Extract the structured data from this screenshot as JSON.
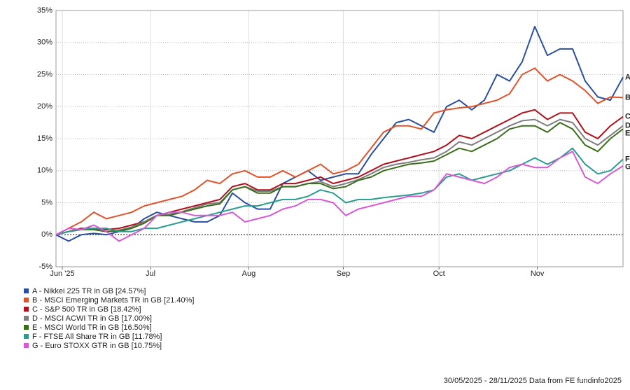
{
  "chart_data": {
    "type": "line",
    "xlim": [
      0,
      45
    ],
    "xticks": [
      {
        "value": 0.5,
        "label": "Jun '25"
      },
      {
        "value": 7.5,
        "label": "Jul"
      },
      {
        "value": 15.3,
        "label": "Aug"
      },
      {
        "value": 22.8,
        "label": "Sep"
      },
      {
        "value": 30.4,
        "label": "Oct"
      },
      {
        "value": 38.2,
        "label": "Nov"
      }
    ],
    "ylim": [
      -5,
      35
    ],
    "yticks": [
      {
        "value": -5,
        "label": "-5%"
      },
      {
        "value": 0,
        "label": "0%"
      },
      {
        "value": 5,
        "label": "5%"
      },
      {
        "value": 10,
        "label": "10%"
      },
      {
        "value": 15,
        "label": "15%"
      },
      {
        "value": 20,
        "label": "20%"
      },
      {
        "value": 25,
        "label": "25%"
      },
      {
        "value": 30,
        "label": "30%"
      },
      {
        "value": 35,
        "label": "35%"
      }
    ],
    "grid": true,
    "series": [
      {
        "name": "A - Nikkei 225 TR in GB [24.57%]",
        "tag": "A",
        "color": "#2a4f9e",
        "values": [
          0,
          -1,
          0,
          0.2,
          0,
          0.5,
          1,
          2.5,
          3.5,
          3,
          2.5,
          2,
          2,
          3,
          6.5,
          5,
          4,
          4,
          8,
          9,
          10,
          8.5,
          9,
          9.5,
          9.5,
          12.5,
          15,
          17.5,
          18,
          17,
          16,
          20,
          21,
          19.5,
          21,
          25,
          24,
          27,
          32.5,
          28,
          29,
          29,
          24,
          21.5,
          21,
          24.57
        ]
      },
      {
        "name": "B - MSCI Emerging Markets TR in GB [21.40%]",
        "tag": "B",
        "color": "#e0522a",
        "values": [
          0,
          1,
          2,
          3.5,
          2.5,
          3,
          3.5,
          4.5,
          5,
          5.5,
          6,
          7,
          8.5,
          8,
          9.5,
          10,
          9,
          9,
          10,
          9,
          10,
          11,
          9.5,
          10,
          11,
          13.5,
          16,
          17,
          17,
          16.5,
          19,
          19.5,
          19.8,
          20,
          20.5,
          21,
          22,
          25,
          26,
          24,
          25,
          24,
          22.5,
          20.5,
          21.5,
          21.4
        ]
      },
      {
        "name": "C - S&P 500 TR in GB [18.42%]",
        "tag": "C",
        "color": "#b0121b",
        "values": [
          0,
          0.5,
          1,
          1,
          0.8,
          1,
          1.5,
          2,
          3,
          3.5,
          4,
          4.5,
          5,
          5.5,
          7.5,
          8,
          7,
          7,
          8,
          8,
          8.5,
          9,
          8,
          8.5,
          9,
          10,
          11,
          11.5,
          12,
          12.5,
          13,
          14,
          15.5,
          15,
          16,
          17,
          18,
          19,
          19.5,
          18,
          19,
          19,
          16,
          15,
          17,
          18.42
        ]
      },
      {
        "name": "D - MSCI ACWI TR in GB [17.00%]",
        "tag": "D",
        "color": "#7f7f7f",
        "values": [
          0,
          0.5,
          0.8,
          0.8,
          0.5,
          0.7,
          1.2,
          2,
          3,
          3.2,
          3.6,
          4.2,
          4.8,
          5,
          7,
          7.5,
          6.8,
          6.8,
          7.5,
          7.5,
          8,
          8.3,
          7.5,
          8,
          8.6,
          9.5,
          10.5,
          11,
          11.3,
          11.7,
          12,
          13,
          14.5,
          14,
          15,
          16,
          17,
          17.8,
          18,
          17,
          18,
          17.5,
          15,
          14,
          15.5,
          17
        ]
      },
      {
        "name": "E - MSCI World TR in GB [16.50%]",
        "tag": "E",
        "color": "#3a6e1a",
        "values": [
          0,
          0.5,
          0.8,
          0.8,
          0.5,
          0.6,
          1,
          1.8,
          3,
          3,
          3.5,
          4,
          4.5,
          4.8,
          7,
          7.5,
          6.5,
          6.5,
          7.5,
          7.5,
          8,
          8,
          7.2,
          7.5,
          8.5,
          9,
          10,
          10.5,
          11,
          11.2,
          11.5,
          12.5,
          13.5,
          13,
          14,
          15,
          16.5,
          17,
          17,
          16,
          17.5,
          16.5,
          14,
          13,
          15,
          16.5
        ]
      },
      {
        "name": "F - FTSE All Share TR in GB [11.78%]",
        "tag": "F",
        "color": "#2a9d8f",
        "values": [
          0,
          0.5,
          0.8,
          1,
          1,
          0.5,
          0.5,
          1,
          1,
          1.5,
          2,
          2.5,
          3,
          3.5,
          4,
          4.5,
          4.5,
          5,
          5.5,
          5.5,
          6,
          7,
          6.5,
          5,
          5.5,
          5.5,
          5.8,
          6,
          6.2,
          6.5,
          7,
          9,
          9.5,
          8.5,
          9,
          9.5,
          10,
          11,
          12,
          11,
          12,
          13.5,
          11,
          9.5,
          10,
          11.78
        ]
      },
      {
        "name": "G - Euro STOXX GTR in GB [10.75%]",
        "tag": "G",
        "color": "#d65ad6",
        "values": [
          0,
          1,
          0.8,
          1.5,
          0.5,
          -1,
          0,
          1,
          3,
          3.5,
          3.5,
          3,
          3,
          3,
          3.5,
          2,
          2.5,
          3,
          4,
          4.5,
          5.5,
          5.5,
          5,
          3,
          4,
          4.5,
          5,
          5.5,
          6,
          6,
          7,
          9.5,
          9,
          8.5,
          8,
          9,
          10.5,
          11,
          10.5,
          10.5,
          12,
          13,
          9,
          8,
          9.5,
          10.75
        ]
      }
    ],
    "footer": "30/05/2025 - 28/11/2025 Data from FE fundinfo2025"
  }
}
